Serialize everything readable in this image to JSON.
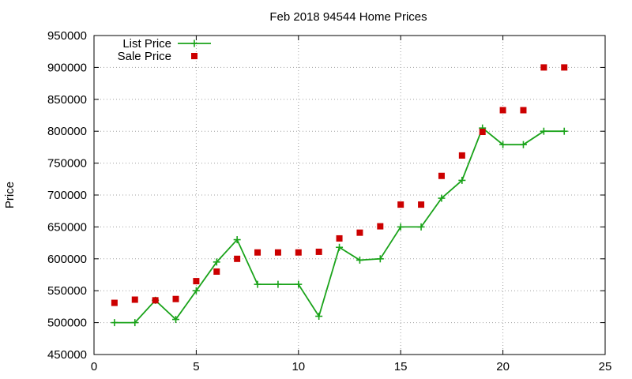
{
  "chart_data": {
    "type": "line",
    "title": "Feb 2018 94544 Home Prices",
    "xlabel": "",
    "ylabel": "Price",
    "xlim": [
      0,
      25
    ],
    "ylim": [
      450000,
      950000
    ],
    "x_ticks": [
      0,
      5,
      10,
      15,
      20,
      25
    ],
    "y_ticks": [
      450000,
      500000,
      550000,
      600000,
      650000,
      700000,
      750000,
      800000,
      850000,
      900000,
      950000
    ],
    "grid": true,
    "legend_position": "top-left",
    "series": [
      {
        "name": "List Price",
        "style": "line-with-plus-markers",
        "color": "#1aa31a",
        "x": [
          1,
          2,
          3,
          4,
          5,
          6,
          7,
          8,
          9,
          10,
          11,
          12,
          13,
          14,
          15,
          16,
          17,
          18,
          19,
          20,
          21,
          22,
          23
        ],
        "y": [
          500000,
          500000,
          535000,
          505000,
          550000,
          595000,
          630000,
          560000,
          560000,
          560000,
          510000,
          618000,
          598000,
          600000,
          650000,
          650000,
          695000,
          723000,
          805000,
          779000,
          779000,
          800000,
          800000
        ]
      },
      {
        "name": "Sale Price",
        "style": "square-markers",
        "color": "#cc0000",
        "x": [
          1,
          2,
          3,
          4,
          5,
          6,
          7,
          8,
          9,
          10,
          11,
          12,
          13,
          14,
          15,
          16,
          17,
          18,
          19,
          20,
          21,
          22,
          23
        ],
        "y": [
          531000,
          536000,
          535000,
          537000,
          565000,
          580000,
          600000,
          610000,
          610000,
          610000,
          611000,
          632000,
          641000,
          651000,
          685000,
          685000,
          730000,
          762000,
          799000,
          833000,
          833000,
          900000,
          900000
        ]
      }
    ]
  }
}
